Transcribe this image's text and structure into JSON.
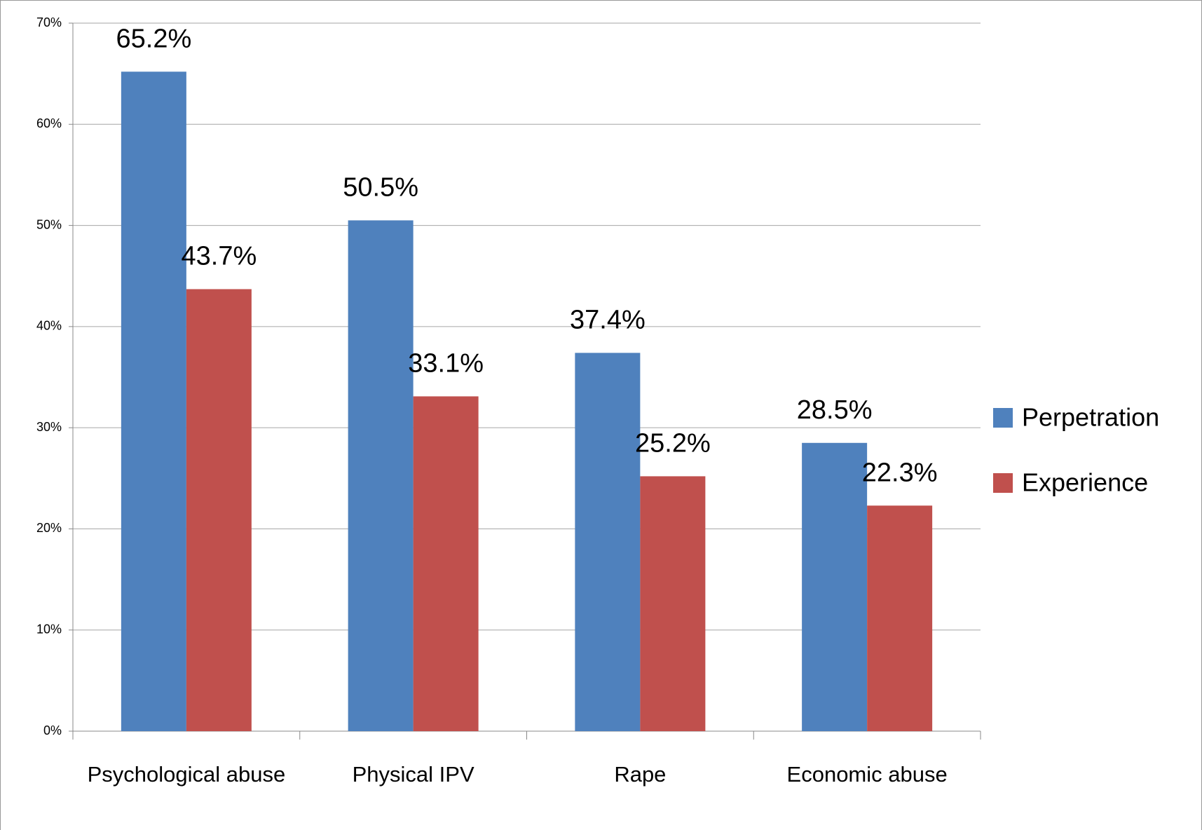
{
  "chart_data": {
    "type": "bar",
    "categories": [
      "Psychological abuse",
      "Physical IPV",
      "Rape",
      "Economic abuse"
    ],
    "series": [
      {
        "name": "Perpetration",
        "color": "#4f81bd",
        "values": [
          65.2,
          50.5,
          37.4,
          28.5
        ],
        "value_labels": [
          "65.2%",
          "50.5%",
          "37.4%",
          "28.5%"
        ]
      },
      {
        "name": "Experience",
        "color": "#c0504d",
        "values": [
          43.7,
          33.1,
          25.2,
          22.3
        ],
        "value_labels": [
          "43.7%",
          "33.1%",
          "25.2%",
          "22.3%"
        ]
      }
    ],
    "ylim": [
      0,
      70
    ],
    "yticks": [
      {
        "value": 0,
        "label": "0%"
      },
      {
        "value": 10,
        "label": "10%"
      },
      {
        "value": 20,
        "label": "20%"
      },
      {
        "value": 30,
        "label": "30%"
      },
      {
        "value": 40,
        "label": "40%"
      },
      {
        "value": 50,
        "label": "50%"
      },
      {
        "value": 60,
        "label": "60%"
      },
      {
        "value": 70,
        "label": "70%"
      }
    ],
    "grid": true,
    "legend": "right"
  }
}
